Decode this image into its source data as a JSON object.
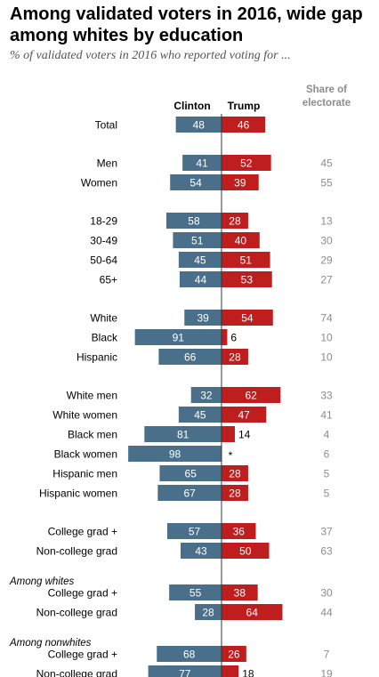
{
  "title": "Among validated voters in 2016, wide gap among whites by education",
  "subtitle": "% of validated voters in 2016 who reported voting for ...",
  "colors": {
    "clinton": "#4a6f8a",
    "trump": "#bf1e1e",
    "share": "#8c8c8c",
    "divider": "#333333"
  },
  "chart_data": {
    "type": "bar",
    "orientation": "diverging-horizontal",
    "headers": {
      "clinton": "Clinton",
      "trump": "Trump",
      "share": "Share of electorate"
    },
    "groups": [
      {
        "label": "",
        "rows": [
          {
            "label": "Total",
            "clinton": 48,
            "trump": 46,
            "share": ""
          }
        ]
      },
      {
        "label": "",
        "rows": [
          {
            "label": "Men",
            "clinton": 41,
            "trump": 52,
            "share": "45"
          },
          {
            "label": "Women",
            "clinton": 54,
            "trump": 39,
            "share": "55"
          }
        ]
      },
      {
        "label": "",
        "rows": [
          {
            "label": "18-29",
            "clinton": 58,
            "trump": 28,
            "share": "13"
          },
          {
            "label": "30-49",
            "clinton": 51,
            "trump": 40,
            "share": "30"
          },
          {
            "label": "50-64",
            "clinton": 45,
            "trump": 51,
            "share": "29"
          },
          {
            "label": "65+",
            "clinton": 44,
            "trump": 53,
            "share": "27"
          }
        ]
      },
      {
        "label": "",
        "rows": [
          {
            "label": "White",
            "clinton": 39,
            "trump": 54,
            "share": "74"
          },
          {
            "label": "Black",
            "clinton": 91,
            "trump": 6,
            "share": "10"
          },
          {
            "label": "Hispanic",
            "clinton": 66,
            "trump": 28,
            "share": "10"
          }
        ]
      },
      {
        "label": "",
        "rows": [
          {
            "label": "White men",
            "clinton": 32,
            "trump": 62,
            "share": "33"
          },
          {
            "label": "White women",
            "clinton": 45,
            "trump": 47,
            "share": "41"
          },
          {
            "label": "Black men",
            "clinton": 81,
            "trump": 14,
            "share": "4"
          },
          {
            "label": "Black women",
            "clinton": 98,
            "trump": "*",
            "share": "6"
          },
          {
            "label": "Hispanic men",
            "clinton": 65,
            "trump": 28,
            "share": "5"
          },
          {
            "label": "Hispanic women",
            "clinton": 67,
            "trump": 28,
            "share": "5"
          }
        ]
      },
      {
        "label": "",
        "rows": [
          {
            "label": "College grad +",
            "clinton": 57,
            "trump": 36,
            "share": "37"
          },
          {
            "label": "Non-college grad",
            "clinton": 43,
            "trump": 50,
            "share": "63"
          }
        ]
      },
      {
        "label": "Among whites",
        "rows": [
          {
            "label": "College grad +",
            "clinton": 55,
            "trump": 38,
            "share": "30"
          },
          {
            "label": "Non-college grad",
            "clinton": 28,
            "trump": 64,
            "share": "44"
          }
        ]
      },
      {
        "label": "Among nonwhites",
        "rows": [
          {
            "label": "College grad +",
            "clinton": 68,
            "trump": 26,
            "share": "7"
          },
          {
            "label": "Non-college grad",
            "clinton": 77,
            "trump": 18,
            "share": "19"
          }
        ]
      }
    ]
  }
}
